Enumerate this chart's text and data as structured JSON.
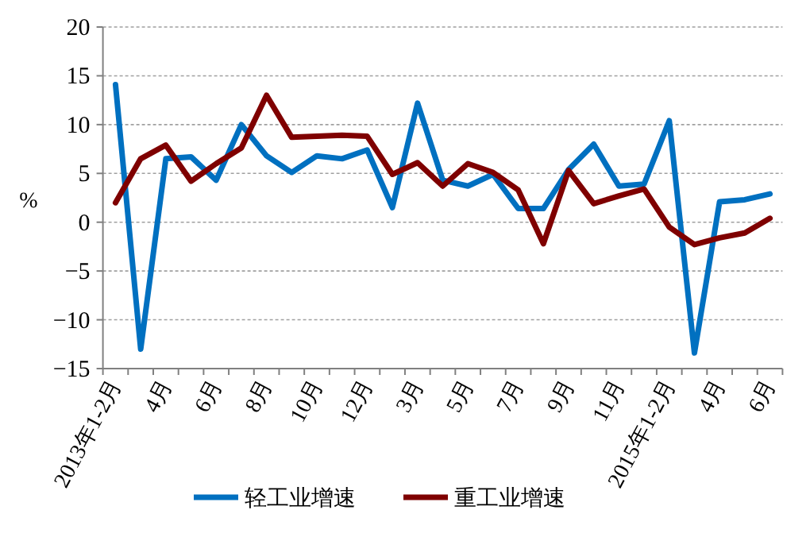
{
  "chart_data": {
    "type": "line",
    "ylabel": "%",
    "categories": [
      "2013年1-2月",
      null,
      "4月",
      null,
      "6月",
      null,
      "8月",
      null,
      "10月",
      null,
      "12月",
      null,
      "3月",
      null,
      "5月",
      null,
      "7月",
      null,
      "9月",
      null,
      "11月",
      null,
      "2015年1-2月",
      null,
      "4月",
      null,
      "6月"
    ],
    "series": [
      {
        "name": "轻工业增速",
        "color": "#0070c0",
        "values": [
          14.1,
          -13.0,
          6.5,
          6.7,
          4.3,
          10.0,
          6.8,
          5.1,
          6.8,
          6.5,
          7.4,
          1.5,
          12.2,
          4.3,
          3.7,
          4.9,
          1.4,
          1.4,
          5.4,
          8.0,
          3.7,
          3.9,
          10.4,
          -13.4,
          2.1,
          2.3,
          2.9
        ]
      },
      {
        "name": "重工业增速",
        "color": "#7f0000",
        "values": [
          2.0,
          6.5,
          7.9,
          4.2,
          6.0,
          7.6,
          13.0,
          8.7,
          8.8,
          8.9,
          8.8,
          4.9,
          6.1,
          3.7,
          6.0,
          5.1,
          3.3,
          -2.2,
          5.3,
          1.9,
          2.7,
          3.4,
          -0.5,
          -2.3,
          -1.6,
          -1.1,
          0.4
        ]
      }
    ],
    "ylim": [
      -15,
      20
    ],
    "yticks": [
      -15,
      -10,
      -5,
      0,
      5,
      10,
      15,
      20
    ],
    "grid": "y",
    "legend": "bottom",
    "line_style": "solid",
    "marker": "none"
  }
}
